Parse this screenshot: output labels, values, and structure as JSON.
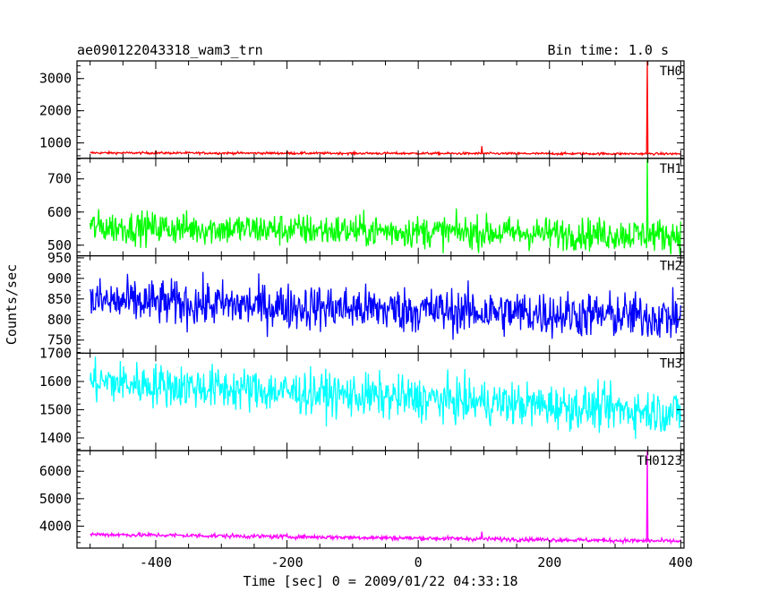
{
  "header": {
    "title": "ae090122043318_wam3_trn",
    "bin_time": "Bin time: 1.0 s"
  },
  "chart_data": {
    "type": "line",
    "xlabel": "Time [sec] 0 = 2009/01/22 04:33:18",
    "ylabel": "Counts/sec",
    "xlim": [
      -520,
      405
    ],
    "x_ticks": [
      -400,
      -200,
      0,
      200,
      400
    ],
    "x_start": -500,
    "x_end": 400,
    "panels": [
      {
        "name": "TH0",
        "color": "#ff0000",
        "ylim": [
          520,
          3550
        ],
        "y_ticks": [
          1000,
          2000,
          3000
        ],
        "baseline": 690,
        "baseline_end": 660,
        "noise": 25,
        "spikes": [
          {
            "x": 97,
            "y": 900
          },
          {
            "x": 349,
            "y": 3550
          }
        ]
      },
      {
        "name": "TH1",
        "color": "#00ff00",
        "ylim": [
          468,
          762
        ],
        "y_ticks": [
          500,
          600,
          700
        ],
        "baseline": 555,
        "baseline_end": 530,
        "noise": 35,
        "spikes": [
          {
            "x": 349,
            "y": 762
          }
        ]
      },
      {
        "name": "TH2",
        "color": "#0000ff",
        "ylim": [
          718,
          955
        ],
        "y_ticks": [
          750,
          800,
          850,
          900,
          950
        ],
        "baseline": 845,
        "baseline_end": 805,
        "noise": 40,
        "spikes": []
      },
      {
        "name": "TH3",
        "color": "#00ffff",
        "ylim": [
          1355,
          1700
        ],
        "y_ticks": [
          1400,
          1500,
          1600,
          1700
        ],
        "baseline": 1600,
        "baseline_end": 1490,
        "noise": 55,
        "spikes": []
      },
      {
        "name": "TH0123",
        "color": "#ff00ff",
        "ylim": [
          3200,
          6750
        ],
        "y_ticks": [
          4000,
          5000,
          6000
        ],
        "baseline": 3700,
        "baseline_end": 3450,
        "noise": 55,
        "spikes": [
          {
            "x": 97,
            "y": 3800
          },
          {
            "x": 349,
            "y": 6750
          }
        ]
      }
    ]
  }
}
